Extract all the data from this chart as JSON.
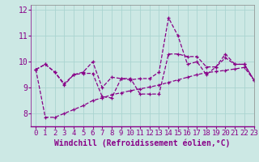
{
  "xlabel": "Windchill (Refroidissement éolien,°C)",
  "background_color": "#cce8e4",
  "grid_color": "#aad4d0",
  "line_color": "#880088",
  "xlim": [
    -0.5,
    23
  ],
  "ylim": [
    7.5,
    12.2
  ],
  "yticks": [
    8,
    9,
    10,
    11,
    12
  ],
  "xticks": [
    0,
    1,
    2,
    3,
    4,
    5,
    6,
    7,
    8,
    9,
    10,
    11,
    12,
    13,
    14,
    15,
    16,
    17,
    18,
    19,
    20,
    21,
    22,
    23
  ],
  "series": [
    [
      9.7,
      9.9,
      9.6,
      9.1,
      9.5,
      9.6,
      10.0,
      9.0,
      9.4,
      9.35,
      9.3,
      9.35,
      9.35,
      9.6,
      11.7,
      11.0,
      9.9,
      10.0,
      9.5,
      9.8,
      10.3,
      9.9,
      9.9,
      9.3
    ],
    [
      9.7,
      9.9,
      9.6,
      9.15,
      9.5,
      9.55,
      9.55,
      8.65,
      8.6,
      9.35,
      9.35,
      8.75,
      8.75,
      8.75,
      10.3,
      10.3,
      10.2,
      10.2,
      9.8,
      9.8,
      10.15,
      9.9,
      9.9,
      9.3
    ],
    [
      9.7,
      7.85,
      7.85,
      8.0,
      8.15,
      8.3,
      8.5,
      8.6,
      8.72,
      8.8,
      8.88,
      8.95,
      9.02,
      9.1,
      9.2,
      9.3,
      9.4,
      9.5,
      9.58,
      9.62,
      9.67,
      9.72,
      9.78,
      9.3
    ]
  ],
  "xlabel_fontsize": 7,
  "tick_fontsize": 6.5,
  "ytick_fontsize": 7
}
